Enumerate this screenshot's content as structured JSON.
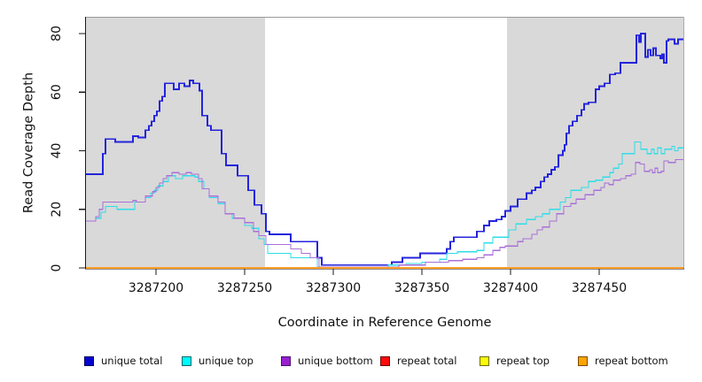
{
  "chart_data": {
    "type": "step-line",
    "title": "",
    "xlabel": "Coordinate in Reference Genome",
    "ylabel": "Read Coverage Depth",
    "x_range": [
      3287160.5,
      3287497.5
    ],
    "y_range": [
      0,
      85.4
    ],
    "x_ticks": [
      3287200,
      3287250,
      3287300,
      3287350,
      3287400,
      3287450
    ],
    "y_ticks": [
      0,
      20,
      40,
      60,
      80
    ],
    "grid": false,
    "plot_background": "#ffffff",
    "shaded_region_color": "#d9d9d9",
    "shaded_regions": [
      {
        "from": 3287160.5,
        "to": 3287261.5
      },
      {
        "from": 3287398.0,
        "to": 3287497.5
      }
    ],
    "series": [
      {
        "name": "unique total",
        "color": "#2424dc",
        "legend_fill": "#0404cf",
        "legend_border": "#000060",
        "points": [
          [
            3287160.5,
            32
          ],
          [
            3287170,
            39
          ],
          [
            3287171.5,
            44
          ],
          [
            3287177,
            43
          ],
          [
            3287187,
            45
          ],
          [
            3287190,
            44.5
          ],
          [
            3287194,
            47
          ],
          [
            3287196,
            48.5
          ],
          [
            3287197.5,
            50
          ],
          [
            3287199,
            52
          ],
          [
            3287200.5,
            53.5
          ],
          [
            3287202,
            57
          ],
          [
            3287203.5,
            58.5
          ],
          [
            3287205,
            63
          ],
          [
            3287210,
            61
          ],
          [
            3287213,
            63
          ],
          [
            3287216,
            62
          ],
          [
            3287219,
            64
          ],
          [
            3287221,
            63
          ],
          [
            3287224.5,
            60.5
          ],
          [
            3287226,
            52
          ],
          [
            3287229,
            48.5
          ],
          [
            3287231,
            47
          ],
          [
            3287237,
            39
          ],
          [
            3287239.5,
            35
          ],
          [
            3287246,
            31.5
          ],
          [
            3287252,
            26.5
          ],
          [
            3287255.5,
            21.5
          ],
          [
            3287259.5,
            18.5
          ],
          [
            3287262,
            12.5
          ],
          [
            3287264,
            11.5
          ],
          [
            3287276,
            9
          ],
          [
            3287291,
            3.5
          ],
          [
            3287293.5,
            1
          ],
          [
            3287333,
            2
          ],
          [
            3287339,
            3.5
          ],
          [
            3287349,
            5
          ],
          [
            3287364,
            6.5
          ],
          [
            3287366,
            9
          ],
          [
            3287368,
            10.5
          ],
          [
            3287381,
            12.5
          ],
          [
            3287385,
            14.5
          ],
          [
            3287388,
            16
          ],
          [
            3287392,
            16.5
          ],
          [
            3287395,
            17.5
          ],
          [
            3287397,
            19.5
          ],
          [
            3287400,
            21
          ],
          [
            3287404,
            23.5
          ],
          [
            3287409,
            25.5
          ],
          [
            3287412,
            26.5
          ],
          [
            3287414,
            27.5
          ],
          [
            3287417,
            29.5
          ],
          [
            3287419,
            31
          ],
          [
            3287421,
            32
          ],
          [
            3287423,
            33.5
          ],
          [
            3287425,
            34.5
          ],
          [
            3287427,
            38.5
          ],
          [
            3287429.5,
            40
          ],
          [
            3287430.5,
            42
          ],
          [
            3287431.5,
            46
          ],
          [
            3287433,
            48.5
          ],
          [
            3287435,
            50
          ],
          [
            3287437.5,
            52
          ],
          [
            3287440,
            54
          ],
          [
            3287441.5,
            56
          ],
          [
            3287444,
            56.5
          ],
          [
            3287448,
            61
          ],
          [
            3287450,
            62
          ],
          [
            3287453,
            63
          ],
          [
            3287456,
            66
          ],
          [
            3287459,
            66.5
          ],
          [
            3287462,
            70
          ],
          [
            3287471,
            79.5
          ],
          [
            3287472.5,
            77
          ],
          [
            3287473.5,
            80
          ],
          [
            3287476,
            72
          ],
          [
            3287477.5,
            74.5
          ],
          [
            3287479,
            72.5
          ],
          [
            3287480.5,
            75
          ],
          [
            3287482,
            72.5
          ],
          [
            3287484.5,
            71.5
          ],
          [
            3287485.5,
            73
          ],
          [
            3287486.5,
            70
          ],
          [
            3287488,
            77.5
          ],
          [
            3287489,
            78
          ],
          [
            3287492.5,
            76.5
          ],
          [
            3287494.5,
            78
          ]
        ]
      },
      {
        "name": "unique top",
        "color": "#2edde8",
        "legend_fill": "#00fbff",
        "legend_border": "#006868",
        "points": [
          [
            3287160.5,
            16
          ],
          [
            3287166,
            17
          ],
          [
            3287169,
            19
          ],
          [
            3287171.5,
            21
          ],
          [
            3287178,
            20
          ],
          [
            3287188,
            22.5
          ],
          [
            3287194,
            24
          ],
          [
            3287197,
            25.5
          ],
          [
            3287199,
            26.5
          ],
          [
            3287201,
            28
          ],
          [
            3287204,
            29.5
          ],
          [
            3287207,
            31.5
          ],
          [
            3287211,
            30.5
          ],
          [
            3287215,
            31.5
          ],
          [
            3287222,
            31
          ],
          [
            3287224,
            29.5
          ],
          [
            3287227,
            27
          ],
          [
            3287230,
            24
          ],
          [
            3287235,
            22
          ],
          [
            3287239,
            18.5
          ],
          [
            3287243,
            17
          ],
          [
            3287250,
            14.5
          ],
          [
            3287254,
            13.5
          ],
          [
            3287258,
            10
          ],
          [
            3287261,
            8
          ],
          [
            3287263,
            5
          ],
          [
            3287276,
            3.5
          ],
          [
            3287291,
            0.3
          ],
          [
            3287331,
            1
          ],
          [
            3287341,
            1.5
          ],
          [
            3287350,
            2
          ],
          [
            3287360,
            3
          ],
          [
            3287364,
            5
          ],
          [
            3287370,
            5.5
          ],
          [
            3287381,
            6
          ],
          [
            3287385,
            8.5
          ],
          [
            3287390,
            10.5
          ],
          [
            3287399,
            13
          ],
          [
            3287403,
            15
          ],
          [
            3287409,
            16.5
          ],
          [
            3287414,
            17.5
          ],
          [
            3287418,
            18.5
          ],
          [
            3287422,
            20
          ],
          [
            3287428,
            22.5
          ],
          [
            3287431,
            24
          ],
          [
            3287434,
            26.5
          ],
          [
            3287440,
            27.5
          ],
          [
            3287444,
            29.5
          ],
          [
            3287448,
            30
          ],
          [
            3287452,
            31
          ],
          [
            3287456,
            32.5
          ],
          [
            3287458,
            34
          ],
          [
            3287461,
            35.5
          ],
          [
            3287463,
            39
          ],
          [
            3287470,
            43
          ],
          [
            3287473.5,
            40.5
          ],
          [
            3287477,
            39
          ],
          [
            3287479.5,
            40.5
          ],
          [
            3287481,
            39
          ],
          [
            3287483,
            41
          ],
          [
            3287485,
            39
          ],
          [
            3287487,
            40.5
          ],
          [
            3287491,
            41.5
          ],
          [
            3287492.5,
            40
          ],
          [
            3287494.5,
            41
          ]
        ]
      },
      {
        "name": "unique bottom",
        "color": "#a96fd8",
        "legend_fill": "#9a1fd1",
        "legend_border": "#46106e",
        "points": [
          [
            3287160.5,
            16
          ],
          [
            3287166,
            17.5
          ],
          [
            3287168,
            20
          ],
          [
            3287170,
            22.5
          ],
          [
            3287187,
            23
          ],
          [
            3287189,
            22.5
          ],
          [
            3287194,
            24.5
          ],
          [
            3287198,
            26
          ],
          [
            3287200,
            27.5
          ],
          [
            3287202,
            29
          ],
          [
            3287204,
            30.5
          ],
          [
            3287206,
            31.5
          ],
          [
            3287209,
            32.5
          ],
          [
            3287213,
            32
          ],
          [
            3287217,
            32.5
          ],
          [
            3287220,
            32
          ],
          [
            3287224,
            30.5
          ],
          [
            3287226,
            27
          ],
          [
            3287230,
            24.5
          ],
          [
            3287235,
            22.5
          ],
          [
            3287239,
            18.5
          ],
          [
            3287244,
            17
          ],
          [
            3287250,
            15.5
          ],
          [
            3287255,
            12.5
          ],
          [
            3287258,
            11
          ],
          [
            3287262,
            8
          ],
          [
            3287276,
            6.5
          ],
          [
            3287282,
            5
          ],
          [
            3287287,
            3.5
          ],
          [
            3287292,
            0.3
          ],
          [
            3287337,
            1
          ],
          [
            3287352,
            2
          ],
          [
            3287365,
            2.5
          ],
          [
            3287373,
            3
          ],
          [
            3287381,
            3.5
          ],
          [
            3287385,
            4.5
          ],
          [
            3287390,
            6
          ],
          [
            3287394,
            7
          ],
          [
            3287397,
            7.5
          ],
          [
            3287404,
            9
          ],
          [
            3287407,
            10
          ],
          [
            3287412,
            11.5
          ],
          [
            3287415,
            13
          ],
          [
            3287418,
            14
          ],
          [
            3287422,
            16
          ],
          [
            3287426,
            18.5
          ],
          [
            3287430,
            21
          ],
          [
            3287434,
            22
          ],
          [
            3287437,
            23.5
          ],
          [
            3287442,
            25
          ],
          [
            3287447,
            26.5
          ],
          [
            3287451,
            27.5
          ],
          [
            3287453,
            29
          ],
          [
            3287455.5,
            28.5
          ],
          [
            3287458,
            30
          ],
          [
            3287462,
            30.5
          ],
          [
            3287465,
            31.5
          ],
          [
            3287468,
            32
          ],
          [
            3287470.5,
            36
          ],
          [
            3287473,
            35.5
          ],
          [
            3287475.5,
            33
          ],
          [
            3287478.5,
            33.5
          ],
          [
            3287480,
            32.5
          ],
          [
            3287481.5,
            34
          ],
          [
            3287483,
            32.5
          ],
          [
            3287485,
            33
          ],
          [
            3287486.5,
            36.5
          ],
          [
            3287489,
            36
          ],
          [
            3287493,
            37
          ]
        ]
      },
      {
        "name": "repeat total",
        "color": "#e01010",
        "legend_fill": "#fb0b0b",
        "legend_border": "#6e0000",
        "points": [
          [
            3287160.5,
            0
          ]
        ]
      },
      {
        "name": "repeat top",
        "color": "#f0e020",
        "legend_fill": "#fbfb0b",
        "legend_border": "#6e6e00",
        "points": [
          [
            3287160.5,
            0
          ]
        ]
      },
      {
        "name": "repeat bottom",
        "color": "#ff9d26",
        "legend_fill": "#ffa503",
        "legend_border": "#7a4a00",
        "points": [
          [
            3287160.5,
            0
          ]
        ]
      }
    ],
    "legend": {
      "position": "bottom",
      "items": [
        "unique total",
        "unique top",
        "unique bottom",
        "repeat total",
        "repeat top",
        "repeat bottom"
      ]
    }
  }
}
